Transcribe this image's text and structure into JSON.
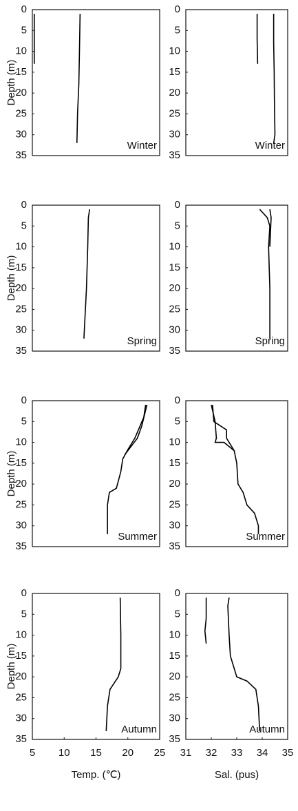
{
  "chart_data": [
    {
      "type": "line",
      "annotation": "Winter",
      "ylabel": "Depth (m)",
      "xlim": [
        5,
        25
      ],
      "ylim": [
        0,
        35
      ],
      "y_inverted": true,
      "yticks": [
        0,
        5,
        10,
        15,
        20,
        25,
        30,
        35
      ],
      "series": [
        {
          "color": "#000000",
          "x": [
            5.3,
            5.3,
            5.3
          ],
          "y": [
            1,
            7,
            13
          ]
        },
        {
          "color": "#000000",
          "x": [
            12.5,
            12.4,
            12.3,
            12.1,
            12.0
          ],
          "y": [
            1,
            10,
            18,
            25,
            32
          ]
        }
      ]
    },
    {
      "type": "line",
      "annotation": "Winter",
      "xlim": [
        31,
        35
      ],
      "ylim": [
        0,
        35
      ],
      "y_inverted": true,
      "yticks": [
        0,
        5,
        10,
        15,
        20,
        25,
        30,
        35
      ],
      "series": [
        {
          "color": "#000000",
          "x": [
            33.8,
            33.8,
            33.82
          ],
          "y": [
            1,
            7,
            13
          ]
        },
        {
          "color": "#000000",
          "x": [
            34.45,
            34.45,
            34.47,
            34.48,
            34.5,
            34.45
          ],
          "y": [
            1,
            8,
            15,
            22,
            30,
            32
          ]
        }
      ]
    },
    {
      "type": "line",
      "annotation": "Spring",
      "ylabel": "Depth (m)",
      "xlim": [
        5,
        25
      ],
      "ylim": [
        0,
        35
      ],
      "y_inverted": true,
      "yticks": [
        0,
        5,
        10,
        15,
        20,
        25,
        30,
        35
      ],
      "series": [
        {
          "color": "#000000",
          "x": [
            14.0,
            13.8,
            13.7,
            13.6,
            13.5,
            13.3,
            13.1
          ],
          "y": [
            1,
            3,
            10,
            15,
            20,
            26,
            32
          ]
        }
      ]
    },
    {
      "type": "line",
      "annotation": "Spring",
      "xlim": [
        31,
        35
      ],
      "ylim": [
        0,
        35
      ],
      "y_inverted": true,
      "yticks": [
        0,
        5,
        10,
        15,
        20,
        25,
        30,
        35
      ],
      "series": [
        {
          "color": "#000000",
          "x": [
            33.9,
            34.2,
            34.3,
            34.25,
            34.3,
            34.3,
            34.3
          ],
          "y": [
            1,
            3,
            5,
            10,
            20,
            26,
            32
          ]
        },
        {
          "color": "#000000",
          "x": [
            34.3,
            34.35,
            34.3
          ],
          "y": [
            1,
            3,
            10
          ]
        }
      ]
    },
    {
      "type": "line",
      "annotation": "Summer",
      "ylabel": "Depth (m)",
      "xlim": [
        5,
        25
      ],
      "ylim": [
        0,
        35
      ],
      "y_inverted": true,
      "yticks": [
        0,
        5,
        10,
        15,
        20,
        25,
        30,
        35
      ],
      "series": [
        {
          "color": "#000000",
          "x": [
            22.8,
            22.5,
            21.1,
            19.9,
            19.2,
            18.9,
            18.2,
            17.1,
            16.8,
            16.8
          ],
          "y": [
            1,
            4,
            9,
            12,
            14,
            17,
            21,
            22,
            25,
            32
          ]
        },
        {
          "color": "#000000",
          "x": [
            23.0,
            22.2,
            21.5,
            20.0,
            19.5
          ],
          "y": [
            1,
            6,
            9,
            12,
            13
          ]
        }
      ]
    },
    {
      "type": "line",
      "annotation": "Summer",
      "xlim": [
        31,
        35
      ],
      "ylim": [
        0,
        35
      ],
      "y_inverted": true,
      "yticks": [
        0,
        5,
        10,
        15,
        20,
        25,
        30,
        35
      ],
      "series": [
        {
          "color": "#000000",
          "x": [
            32.05,
            32.1,
            32.6,
            32.6,
            32.9,
            33.0,
            33.05,
            33.25,
            33.4,
            33.7,
            33.85,
            33.85
          ],
          "y": [
            1,
            5,
            7,
            9,
            12,
            15,
            20,
            22,
            25,
            27,
            30,
            32
          ]
        },
        {
          "color": "#000000",
          "x": [
            32.0,
            32.15,
            32.2,
            32.15,
            32.5,
            32.9
          ],
          "y": [
            1,
            5,
            9,
            10,
            10,
            12
          ]
        }
      ]
    },
    {
      "type": "line",
      "annotation": "Autumn",
      "ylabel": "Depth (m)",
      "xlabel": "Temp. (℃)",
      "xlim": [
        5,
        25
      ],
      "ylim": [
        0,
        35
      ],
      "y_inverted": true,
      "xticks": [
        5,
        10,
        15,
        20,
        25
      ],
      "yticks": [
        0,
        5,
        10,
        15,
        20,
        25,
        30,
        35
      ],
      "series": [
        {
          "color": "#000000",
          "x": [
            18.8,
            18.9,
            18.9,
            18.5,
            17.2,
            16.8,
            16.6
          ],
          "y": [
            1,
            10,
            18,
            20,
            23,
            27,
            33
          ]
        }
      ]
    },
    {
      "type": "line",
      "annotation": "Autumn",
      "xlabel": "Sal. (pus)",
      "xlim": [
        31,
        35
      ],
      "ylim": [
        0,
        35
      ],
      "y_inverted": true,
      "xticks": [
        31,
        32,
        33,
        34,
        35
      ],
      "yticks": [
        0,
        5,
        10,
        15,
        20,
        25,
        30,
        35
      ],
      "series": [
        {
          "color": "#000000",
          "x": [
            31.8,
            31.8,
            31.75,
            31.8
          ],
          "y": [
            1,
            6,
            9,
            12
          ]
        },
        {
          "color": "#000000",
          "x": [
            32.7,
            32.65,
            32.7,
            32.75,
            32.9,
            33.0,
            33.4,
            33.75,
            33.85,
            33.9
          ],
          "y": [
            1,
            3,
            10,
            15,
            18,
            20,
            21,
            23,
            27,
            33
          ]
        }
      ]
    }
  ]
}
